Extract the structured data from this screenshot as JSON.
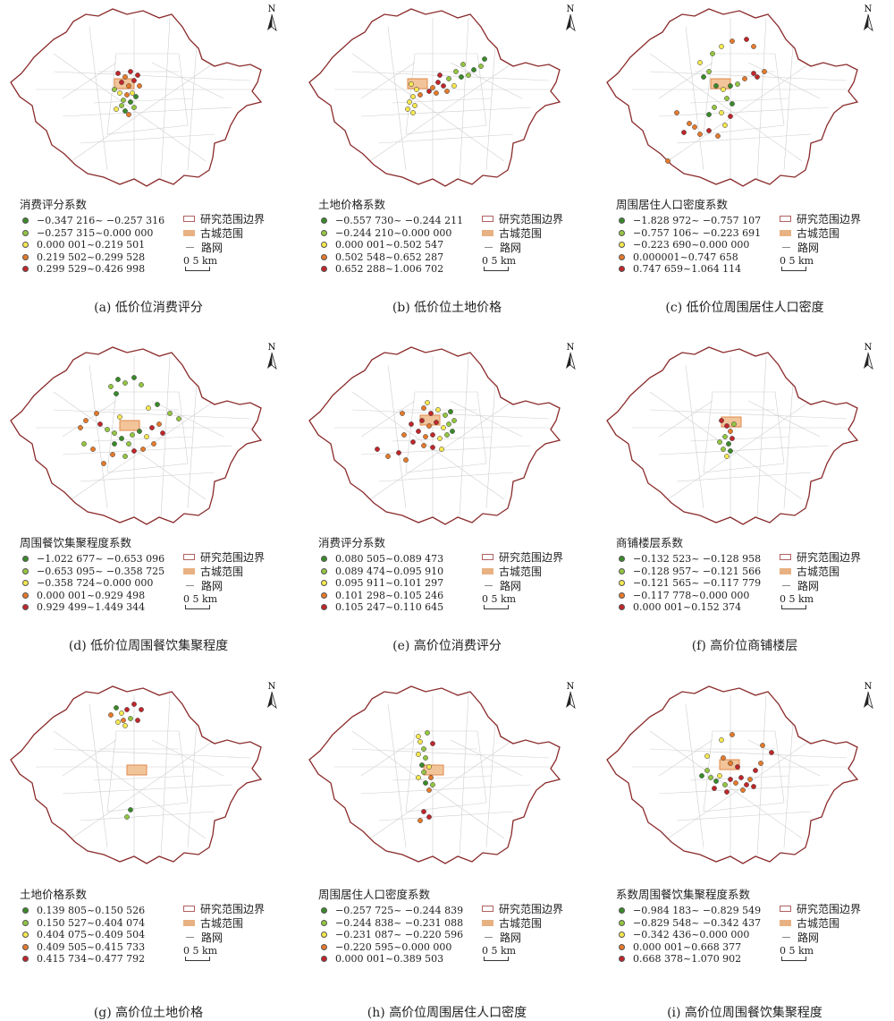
{
  "legend_common": {
    "boundary": "研究范围边界",
    "old_city": "古城范围",
    "road": "路网",
    "scale_zero": "0",
    "scale_label": "5 km"
  },
  "north_label": "N",
  "colors": [
    "#3a8a2a",
    "#94c640",
    "#f5e850",
    "#e67a2a",
    "#c0262b"
  ],
  "panels": [
    {
      "caption": "(a) 低价位消费评分",
      "legend_title": "消费评分系数",
      "items": [
        "−0.347 216~ −0.257 316",
        "−0.257 315~0.000 000",
        "0.000 001~0.219 501",
        "0.219 502~0.299 528",
        "0.299 529~0.426 998"
      ]
    },
    {
      "caption": "(b) 低价位土地价格",
      "legend_title": "土地价格系数",
      "items": [
        "−0.557 730~ −0.244 211",
        "−0.244 210~0.000 000",
        "0.000 001~0.502 547",
        "0.502 548~0.652 287",
        "0.652 288~1.006 702"
      ]
    },
    {
      "caption": "(c) 低价位周围居住人口密度",
      "legend_title": "周围居住人口密度系数",
      "items": [
        "−1.828 972~ −0.757 107",
        "−0.757 106~ −0.223 691",
        "−0.223 690~0.000 000",
        "0.000001~0.747 658",
        "0.747 659~1.064 114"
      ]
    },
    {
      "caption": "(d) 低价位周围餐饮集聚程度",
      "legend_title": "周围餐饮集聚程度系数",
      "items": [
        "−1.022 677~ −0.653 096",
        "−0.653 095~ −0.358 725",
        "−0.358 724~0.000 000",
        "0.000 001~0.929 498",
        "0.929 499~1.449 344"
      ]
    },
    {
      "caption": "(e) 高价位消费评分",
      "legend_title": "消费评分系数",
      "items": [
        "0.080 505~0.089 473",
        "0.089 474~0.095 910",
        "0.095 911~0.101 297",
        "0.101 298~0.105 246",
        "0.105 247~0.110 645"
      ]
    },
    {
      "caption": "(f) 高价位商铺楼层",
      "legend_title": "商铺楼层系数",
      "items": [
        "−0.132 523~ −0.128 958",
        "−0.128 957~ −0.121 566",
        "−0.121 565~ −0.117 779",
        "−0.117 778~0.000 000",
        "0.000 001~0.152 374"
      ]
    },
    {
      "caption": "(g) 高价位土地价格",
      "legend_title": "土地价格系数",
      "items": [
        "0.139 805~0.150 526",
        "0.150 527~0.404 074",
        "0.404 075~0.409 504",
        "0.409 505~0.415 733",
        "0.415 734~0.477 792"
      ]
    },
    {
      "caption": "(h) 高价位周围居住人口密度",
      "legend_title": "周围居住人口密度系数",
      "items": [
        "−0.257 725~ −0.244 839",
        "−0.244 838~ −0.231 088",
        "−0.231 087~ −0.220 596",
        "−0.220 595~0.000 000",
        "0.000 001~0.389 503"
      ]
    },
    {
      "caption": "(i) 高价位周围餐饮集聚程度",
      "legend_title": "系数周围餐饮集聚程度系数",
      "items": [
        "−0.984 183~ −0.829 549",
        "−0.829 548~ −0.342 437",
        "−0.342 436~0.000 000",
        "0.000 001~0.668 377",
        "0.668 378~1.070 902"
      ]
    }
  ]
}
